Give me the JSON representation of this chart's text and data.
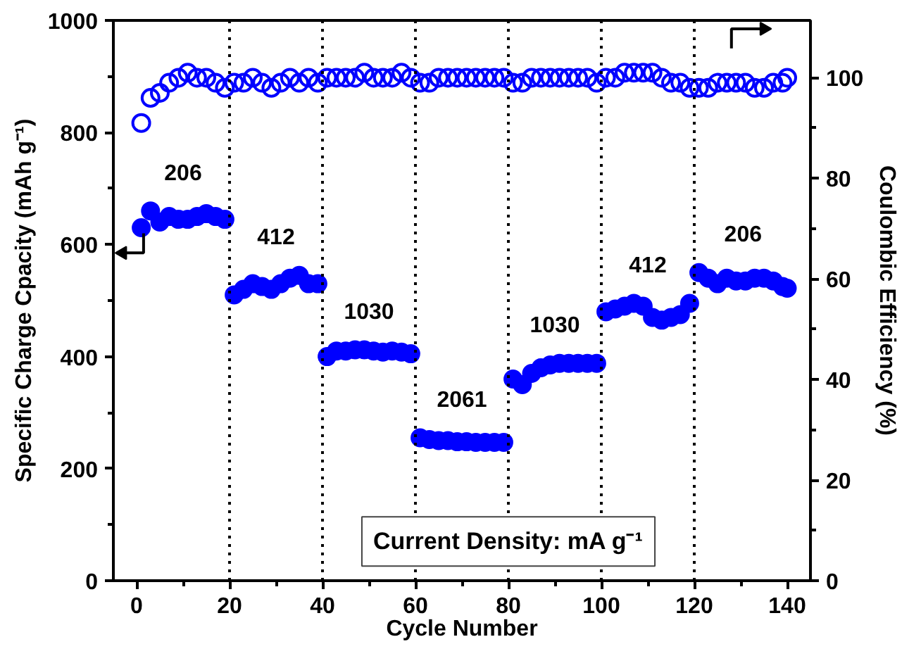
{
  "chart_data": {
    "type": "scatter",
    "xlabel": "Cycle Number",
    "ylabel": "Specific Charge Cpacity (mAh g⁻¹)",
    "y2label": "Coulombic Efficiency (%)",
    "xlim": [
      -5,
      145
    ],
    "xticks": [
      0,
      20,
      40,
      60,
      80,
      100,
      120,
      140
    ],
    "ylim": [
      0,
      1000
    ],
    "yticks": [
      0,
      200,
      400,
      600,
      800,
      1000
    ],
    "y2lim": [
      0,
      111.4
    ],
    "y2ticks": [
      0,
      20,
      40,
      60,
      80,
      100
    ],
    "grid": false,
    "marker": "circle",
    "series": [
      {
        "color": "#0000ff",
        "x": [
          1,
          3,
          5,
          7,
          9,
          11,
          13,
          15,
          17,
          19,
          21,
          23,
          25,
          27,
          29,
          31,
          33,
          35,
          37,
          39,
          41,
          43,
          45,
          47,
          49,
          51,
          53,
          55,
          57,
          59,
          61,
          63,
          65,
          67,
          69,
          71,
          73,
          75,
          77,
          79,
          81,
          83,
          85,
          87,
          89,
          91,
          93,
          95,
          97,
          99,
          101,
          103,
          105,
          107,
          109,
          111,
          113,
          115,
          117,
          119,
          121,
          123,
          125,
          127,
          129,
          131,
          133,
          135,
          137,
          139,
          140
        ],
        "values": [
          630,
          660,
          640,
          650,
          645,
          645,
          650,
          655,
          650,
          645,
          510,
          520,
          530,
          525,
          520,
          530,
          540,
          545,
          530,
          530,
          400,
          410,
          410,
          412,
          412,
          410,
          408,
          410,
          408,
          405,
          255,
          252,
          250,
          250,
          248,
          248,
          247,
          247,
          247,
          247,
          360,
          350,
          370,
          380,
          385,
          388,
          388,
          388,
          388,
          388,
          480,
          485,
          490,
          495,
          490,
          470,
          465,
          470,
          475,
          495,
          550,
          540,
          530,
          540,
          535,
          535,
          540,
          540,
          535,
          525,
          522
        ]
      },
      {
        "color": "#0000ff",
        "axis": "y2",
        "x": [
          1,
          3,
          5,
          7,
          9,
          11,
          13,
          15,
          17,
          19,
          21,
          23,
          25,
          27,
          29,
          31,
          33,
          35,
          37,
          39,
          41,
          43,
          45,
          47,
          49,
          51,
          53,
          55,
          57,
          59,
          61,
          63,
          65,
          67,
          69,
          71,
          73,
          75,
          77,
          79,
          81,
          83,
          85,
          87,
          89,
          91,
          93,
          95,
          97,
          99,
          101,
          103,
          105,
          107,
          109,
          111,
          113,
          115,
          117,
          119,
          121,
          123,
          125,
          127,
          129,
          131,
          133,
          135,
          137,
          139,
          140
        ],
        "values": [
          91,
          96,
          97,
          99,
          100,
          101,
          100,
          100,
          99,
          98,
          99,
          99,
          100,
          99,
          98,
          99,
          100,
          99,
          100,
          99,
          100,
          100,
          100,
          100,
          101,
          100,
          100,
          100,
          101,
          100,
          99,
          99,
          100,
          100,
          100,
          100,
          100,
          100,
          100,
          100,
          99,
          99,
          100,
          100,
          100,
          100,
          100,
          100,
          100,
          99,
          100,
          100,
          101,
          101,
          101,
          101,
          100,
          99,
          99,
          98,
          98,
          98,
          99,
          99,
          99,
          99,
          98,
          98,
          99,
          99,
          100
        ]
      }
    ],
    "ref_lines": [
      {
        "axis": "x",
        "value": 20,
        "color": "#000000",
        "line_style": "dotted"
      },
      {
        "axis": "x",
        "value": 40,
        "color": "#000000",
        "line_style": "dotted"
      },
      {
        "axis": "x",
        "value": 60,
        "color": "#000000",
        "line_style": "dotted"
      },
      {
        "axis": "x",
        "value": 80,
        "color": "#000000",
        "line_style": "dotted"
      },
      {
        "axis": "x",
        "value": 100,
        "color": "#000000",
        "line_style": "dotted"
      },
      {
        "axis": "x",
        "value": 120,
        "color": "#000000",
        "line_style": "dotted"
      }
    ],
    "annotations": [
      "206",
      "412",
      "1030",
      "2061",
      "1030",
      "412",
      "206",
      "Current Density: mA g⁻¹"
    ]
  }
}
